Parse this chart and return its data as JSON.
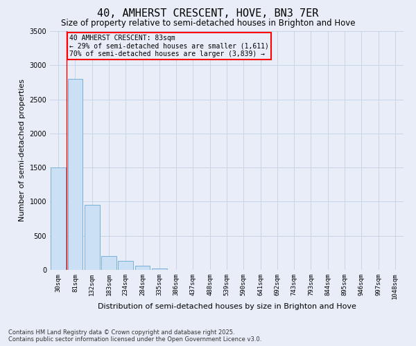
{
  "title": "40, AMHERST CRESCENT, HOVE, BN3 7ER",
  "subtitle": "Size of property relative to semi-detached houses in Brighton and Hove",
  "xlabel": "Distribution of semi-detached houses by size in Brighton and Hove",
  "ylabel": "Number of semi-detached properties",
  "categories": [
    "30sqm",
    "81sqm",
    "132sqm",
    "183sqm",
    "234sqm",
    "284sqm",
    "335sqm",
    "386sqm",
    "437sqm",
    "488sqm",
    "539sqm",
    "590sqm",
    "641sqm",
    "692sqm",
    "743sqm",
    "793sqm",
    "844sqm",
    "895sqm",
    "946sqm",
    "997sqm",
    "1048sqm"
  ],
  "values": [
    1500,
    2800,
    950,
    200,
    130,
    60,
    20,
    5,
    0,
    0,
    0,
    0,
    0,
    0,
    0,
    0,
    0,
    0,
    0,
    0,
    0
  ],
  "bar_color": "#cce0f5",
  "bar_edge_color": "#7bafd4",
  "annotation_box_color": "#ff0000",
  "subject_label": "40 AMHERST CRESCENT: 83sqm",
  "annotation_line1": "← 29% of semi-detached houses are smaller (1,611)",
  "annotation_line2": "70% of semi-detached houses are larger (3,839) →",
  "ylim": [
    0,
    3500
  ],
  "yticks": [
    0,
    500,
    1000,
    1500,
    2000,
    2500,
    3000,
    3500
  ],
  "grid_color": "#c8d4e8",
  "background_color": "#e8edf8",
  "footnote1": "Contains HM Land Registry data © Crown copyright and database right 2025.",
  "footnote2": "Contains public sector information licensed under the Open Government Licence v3.0.",
  "title_fontsize": 11,
  "subtitle_fontsize": 8.5,
  "tick_fontsize": 6.5,
  "ylabel_fontsize": 8,
  "xlabel_fontsize": 8,
  "footnote_fontsize": 6,
  "annotation_fontsize": 7
}
